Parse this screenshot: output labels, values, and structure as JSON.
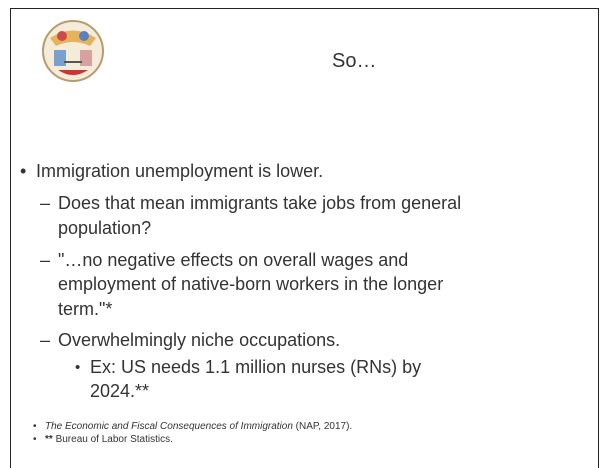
{
  "header": {
    "title": "So…"
  },
  "bullets": [
    {
      "text": "Immigration unemployment is lower.",
      "sub": [
        {
          "lines": [
            "Does that mean immigrants take jobs from general",
            "population?"
          ]
        },
        {
          "lines": [
            "\"…no negative effects on overall wages and",
            "employment of native-born workers in the longer",
            "term.\"*"
          ]
        },
        {
          "lines": [
            "Overwhelmingly niche occupations."
          ],
          "sub": [
            {
              "lines": [
                "Ex: US needs 1.1 million nurses (RNs) by",
                "2024.**"
              ]
            }
          ]
        }
      ]
    }
  ],
  "footnotes": [
    {
      "italic": "The Economic and Fiscal Consequences of Immigration",
      "text": " (NAP, 2017)."
    },
    {
      "bold": "**",
      "text": " Bureau of Labor Statistics."
    }
  ]
}
